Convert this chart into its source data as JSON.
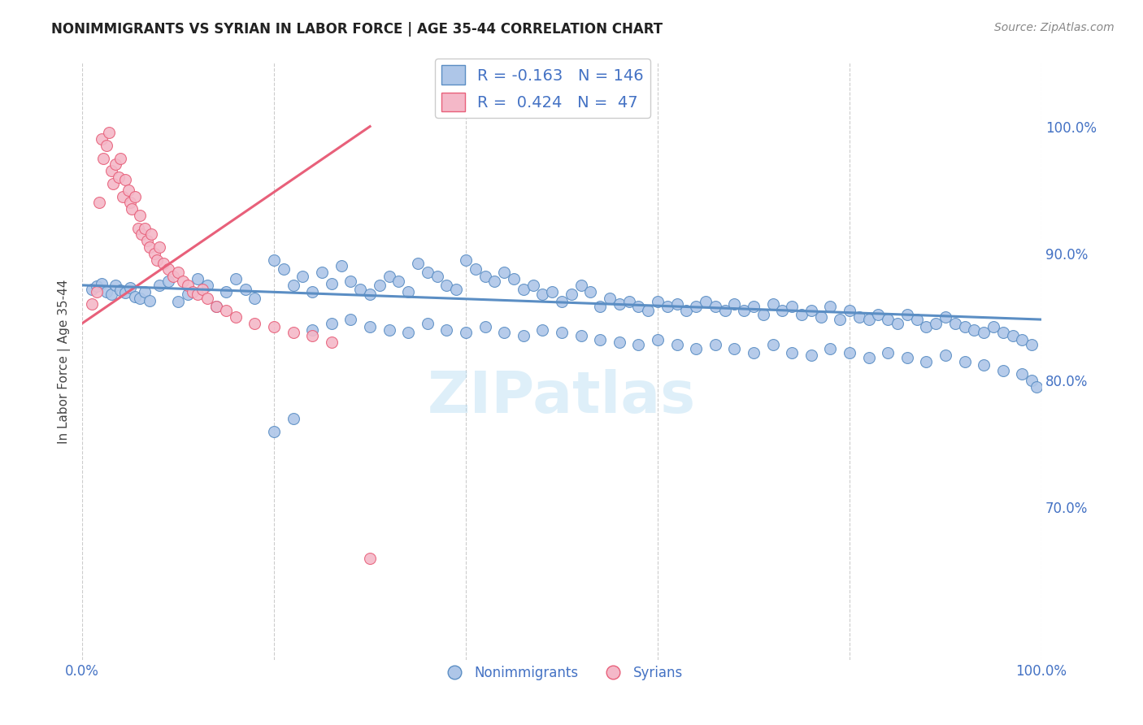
{
  "title": "NONIMMIGRANTS VS SYRIAN IN LABOR FORCE | AGE 35-44 CORRELATION CHART",
  "source": "Source: ZipAtlas.com",
  "ylabel": "In Labor Force | Age 35-44",
  "xlim": [
    0.0,
    1.0
  ],
  "ylim": [
    0.58,
    1.05
  ],
  "x_tick_labels": [
    "0.0%",
    "",
    "",
    "",
    "",
    "100.0%"
  ],
  "x_tick_positions": [
    0.0,
    0.2,
    0.4,
    0.6,
    0.8,
    1.0
  ],
  "y_tick_labels_right": [
    "100.0%",
    "90.0%",
    "80.0%",
    "70.0%"
  ],
  "y_tick_positions_right": [
    1.0,
    0.9,
    0.8,
    0.7
  ],
  "R_nonimm": -0.163,
  "N_nonimm": 146,
  "R_syrian": 0.424,
  "N_syrian": 47,
  "color_nonimm": "#aec6e8",
  "color_syrian": "#f4b8c8",
  "line_color_nonimm": "#5b8ec4",
  "line_color_syrian": "#e8607a",
  "text_color": "#4472c4",
  "background_color": "#ffffff",
  "grid_color": "#cccccc",
  "watermark": "ZIPatlas",
  "nonimm_x": [
    0.01,
    0.015,
    0.02,
    0.025,
    0.03,
    0.035,
    0.04,
    0.045,
    0.05,
    0.055,
    0.06,
    0.065,
    0.07,
    0.08,
    0.09,
    0.1,
    0.11,
    0.12,
    0.13,
    0.14,
    0.15,
    0.16,
    0.17,
    0.18,
    0.2,
    0.21,
    0.22,
    0.23,
    0.24,
    0.25,
    0.26,
    0.27,
    0.28,
    0.29,
    0.3,
    0.31,
    0.32,
    0.33,
    0.34,
    0.35,
    0.36,
    0.37,
    0.38,
    0.39,
    0.4,
    0.41,
    0.42,
    0.43,
    0.44,
    0.45,
    0.46,
    0.47,
    0.48,
    0.49,
    0.5,
    0.51,
    0.52,
    0.53,
    0.54,
    0.55,
    0.56,
    0.57,
    0.58,
    0.59,
    0.6,
    0.61,
    0.62,
    0.63,
    0.64,
    0.65,
    0.66,
    0.67,
    0.68,
    0.69,
    0.7,
    0.71,
    0.72,
    0.73,
    0.74,
    0.75,
    0.76,
    0.77,
    0.78,
    0.79,
    0.8,
    0.81,
    0.82,
    0.83,
    0.84,
    0.85,
    0.86,
    0.87,
    0.88,
    0.89,
    0.9,
    0.91,
    0.92,
    0.93,
    0.94,
    0.95,
    0.96,
    0.97,
    0.98,
    0.99,
    0.2,
    0.22,
    0.24,
    0.26,
    0.28,
    0.3,
    0.32,
    0.34,
    0.36,
    0.38,
    0.4,
    0.42,
    0.44,
    0.46,
    0.48,
    0.5,
    0.52,
    0.54,
    0.56,
    0.58,
    0.6,
    0.62,
    0.64,
    0.66,
    0.68,
    0.7,
    0.72,
    0.74,
    0.76,
    0.78,
    0.8,
    0.82,
    0.84,
    0.86,
    0.88,
    0.9,
    0.92,
    0.94,
    0.96,
    0.98,
    0.99,
    0.995
  ],
  "nonimm_y": [
    0.872,
    0.874,
    0.876,
    0.87,
    0.868,
    0.875,
    0.871,
    0.869,
    0.873,
    0.866,
    0.865,
    0.87,
    0.863,
    0.875,
    0.878,
    0.862,
    0.868,
    0.88,
    0.875,
    0.858,
    0.87,
    0.88,
    0.872,
    0.865,
    0.895,
    0.888,
    0.875,
    0.882,
    0.87,
    0.885,
    0.876,
    0.89,
    0.878,
    0.872,
    0.868,
    0.875,
    0.882,
    0.878,
    0.87,
    0.892,
    0.885,
    0.882,
    0.875,
    0.872,
    0.895,
    0.888,
    0.882,
    0.878,
    0.885,
    0.88,
    0.872,
    0.875,
    0.868,
    0.87,
    0.862,
    0.868,
    0.875,
    0.87,
    0.858,
    0.865,
    0.86,
    0.862,
    0.858,
    0.855,
    0.862,
    0.858,
    0.86,
    0.855,
    0.858,
    0.862,
    0.858,
    0.855,
    0.86,
    0.855,
    0.858,
    0.852,
    0.86,
    0.855,
    0.858,
    0.852,
    0.855,
    0.85,
    0.858,
    0.848,
    0.855,
    0.85,
    0.848,
    0.852,
    0.848,
    0.845,
    0.852,
    0.848,
    0.842,
    0.845,
    0.85,
    0.845,
    0.842,
    0.84,
    0.838,
    0.842,
    0.838,
    0.835,
    0.832,
    0.828,
    0.76,
    0.77,
    0.84,
    0.845,
    0.848,
    0.842,
    0.84,
    0.838,
    0.845,
    0.84,
    0.838,
    0.842,
    0.838,
    0.835,
    0.84,
    0.838,
    0.835,
    0.832,
    0.83,
    0.828,
    0.832,
    0.828,
    0.825,
    0.828,
    0.825,
    0.822,
    0.828,
    0.822,
    0.82,
    0.825,
    0.822,
    0.818,
    0.822,
    0.818,
    0.815,
    0.82,
    0.815,
    0.812,
    0.808,
    0.805,
    0.8,
    0.795
  ],
  "syrian_x": [
    0.01,
    0.015,
    0.018,
    0.02,
    0.022,
    0.025,
    0.028,
    0.03,
    0.032,
    0.035,
    0.038,
    0.04,
    0.042,
    0.045,
    0.048,
    0.05,
    0.052,
    0.055,
    0.058,
    0.06,
    0.062,
    0.065,
    0.068,
    0.07,
    0.072,
    0.075,
    0.078,
    0.08,
    0.085,
    0.09,
    0.095,
    0.1,
    0.105,
    0.11,
    0.115,
    0.12,
    0.125,
    0.13,
    0.14,
    0.15,
    0.16,
    0.18,
    0.2,
    0.22,
    0.24,
    0.26,
    0.3
  ],
  "syrian_y": [
    0.86,
    0.87,
    0.94,
    0.99,
    0.975,
    0.985,
    0.995,
    0.965,
    0.955,
    0.97,
    0.96,
    0.975,
    0.945,
    0.958,
    0.95,
    0.94,
    0.935,
    0.945,
    0.92,
    0.93,
    0.915,
    0.92,
    0.91,
    0.905,
    0.915,
    0.9,
    0.895,
    0.905,
    0.892,
    0.888,
    0.882,
    0.885,
    0.878,
    0.875,
    0.87,
    0.868,
    0.872,
    0.865,
    0.858,
    0.855,
    0.85,
    0.845,
    0.842,
    0.838,
    0.835,
    0.83,
    0.66
  ],
  "syrian_line_x": [
    0.0,
    0.3
  ],
  "syrian_line_y": [
    0.845,
    1.0
  ],
  "nonimm_line_x": [
    0.0,
    1.0
  ],
  "nonimm_line_y": [
    0.875,
    0.848
  ]
}
